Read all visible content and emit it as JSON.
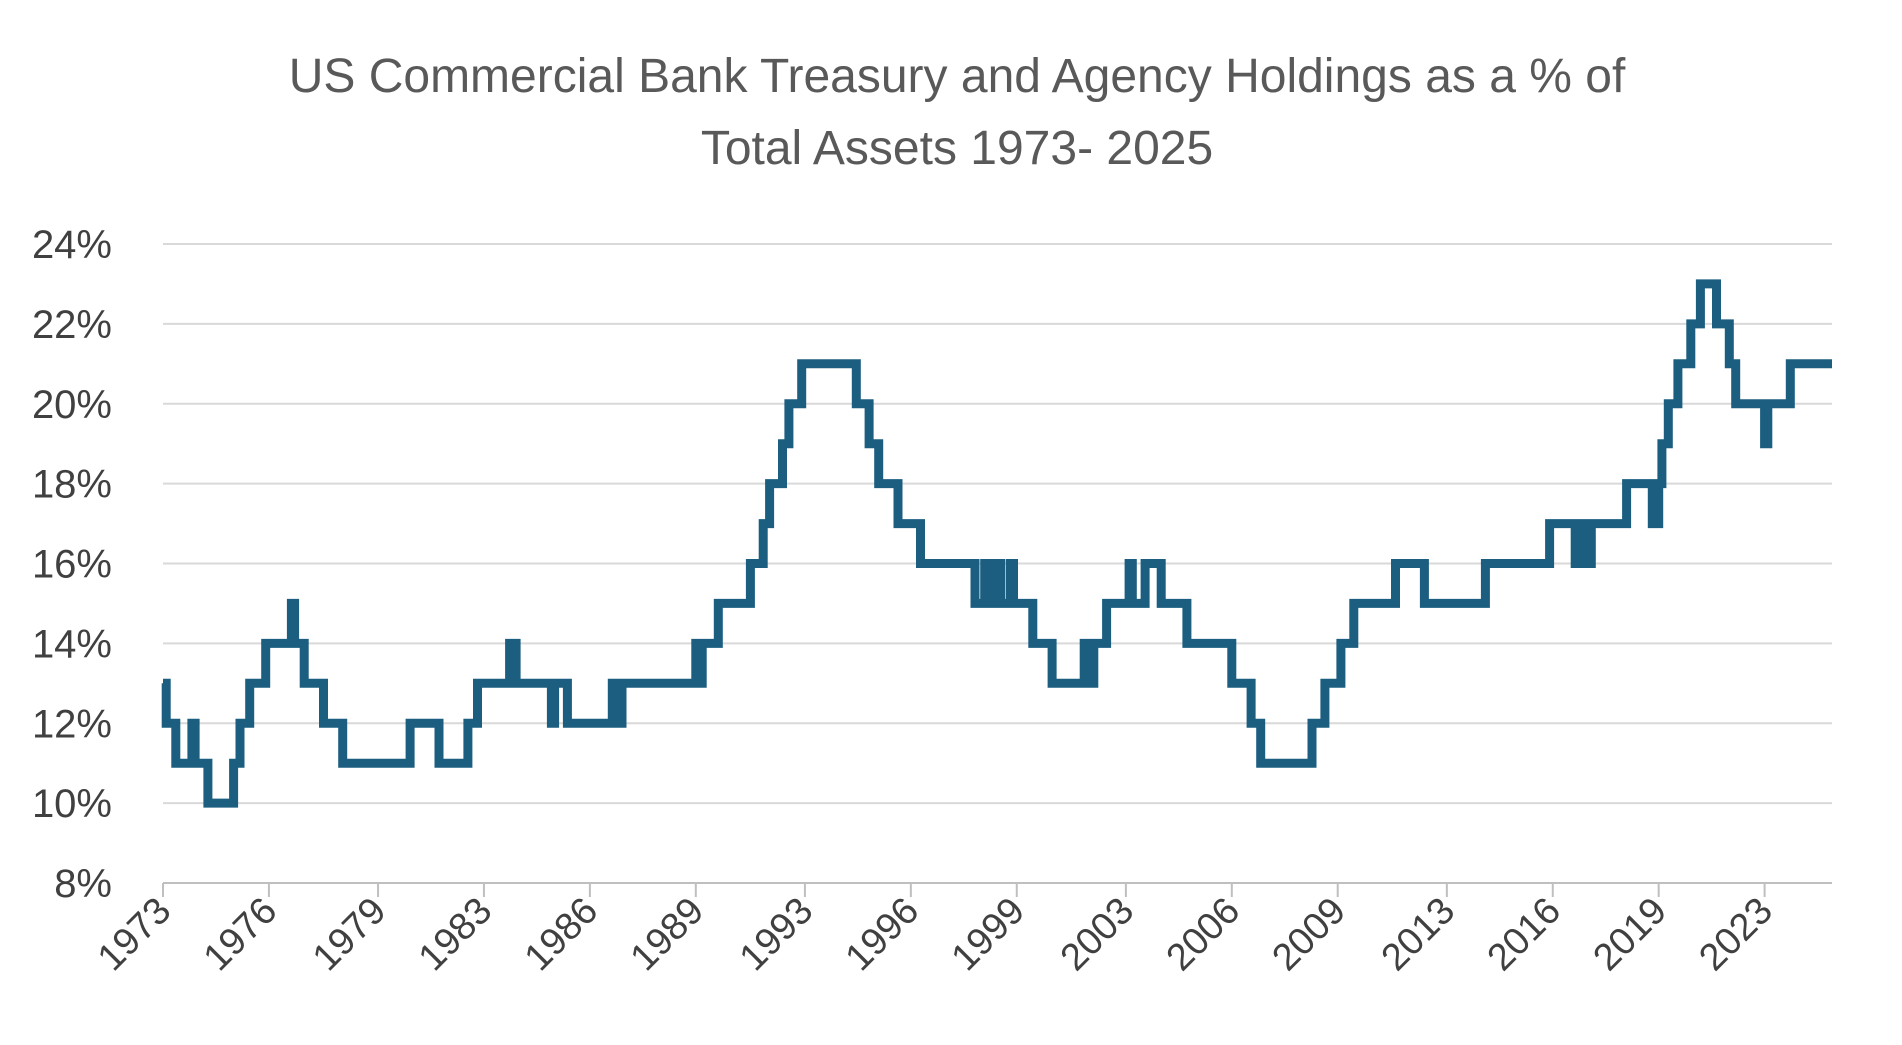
{
  "chart_data": {
    "type": "line",
    "title_lines": [
      "US Commercial Bank Treasury and Agency Holdings as a % of",
      "Total Assets 1973- 2025"
    ],
    "xlabel": "",
    "ylabel": "",
    "ylim": [
      8,
      24
    ],
    "xlim": [
      1973.0,
      2025.0
    ],
    "y_ticks": [
      8,
      10,
      12,
      14,
      16,
      18,
      20,
      22,
      24
    ],
    "y_tick_labels": [
      "8%",
      "10%",
      "12%",
      "14%",
      "16%",
      "18%",
      "20%",
      "22%",
      "24%"
    ],
    "x_ticks": [
      1973.0,
      1976.3,
      1979.7,
      1983.0,
      1986.3,
      1989.6,
      1993.0,
      1996.3,
      1999.6,
      2003.0,
      2006.3,
      2009.6,
      2013.0,
      2016.3,
      2019.6,
      2022.9
    ],
    "x_tick_labels": [
      "1973",
      "1976",
      "1979",
      "1983",
      "1986",
      "1989",
      "1993",
      "1996",
      "1999",
      "2003",
      "2006",
      "2009",
      "2013",
      "2016",
      "2019",
      "2023"
    ],
    "grid": true,
    "legend": "none",
    "series": [
      {
        "color": "#1b5e80",
        "step": true,
        "points": [
          [
            1973.0,
            13
          ],
          [
            1973.1,
            12
          ],
          [
            1973.4,
            11
          ],
          [
            1973.9,
            12
          ],
          [
            1974.0,
            11
          ],
          [
            1974.4,
            10
          ],
          [
            1975.2,
            11
          ],
          [
            1975.4,
            12
          ],
          [
            1975.7,
            13
          ],
          [
            1976.2,
            14
          ],
          [
            1977.0,
            15
          ],
          [
            1977.1,
            14
          ],
          [
            1977.4,
            13
          ],
          [
            1978.0,
            12
          ],
          [
            1978.6,
            11
          ],
          [
            1980.7,
            12
          ],
          [
            1981.6,
            11
          ],
          [
            1982.0,
            11
          ],
          [
            1982.5,
            12
          ],
          [
            1982.8,
            13
          ],
          [
            1983.8,
            14
          ],
          [
            1984.0,
            13
          ],
          [
            1985.1,
            12
          ],
          [
            1985.2,
            13
          ],
          [
            1985.6,
            12
          ],
          [
            1987.0,
            13
          ],
          [
            1987.1,
            12
          ],
          [
            1987.3,
            13
          ],
          [
            1989.6,
            14
          ],
          [
            1989.7,
            13
          ],
          [
            1989.8,
            14
          ],
          [
            1990.3,
            15
          ],
          [
            1991.3,
            16
          ],
          [
            1991.7,
            17
          ],
          [
            1991.9,
            18
          ],
          [
            1992.3,
            19
          ],
          [
            1992.5,
            20
          ],
          [
            1992.9,
            21
          ],
          [
            1994.6,
            20
          ],
          [
            1995.0,
            19
          ],
          [
            1995.3,
            18
          ],
          [
            1995.9,
            17
          ],
          [
            1996.6,
            16
          ],
          [
            1998.3,
            15
          ],
          [
            1998.6,
            16
          ],
          [
            1998.7,
            15
          ],
          [
            1998.9,
            16
          ],
          [
            1999.1,
            15
          ],
          [
            1999.4,
            16
          ],
          [
            1999.5,
            15
          ],
          [
            2000.1,
            14
          ],
          [
            2000.7,
            13
          ],
          [
            2001.7,
            14
          ],
          [
            2001.9,
            13
          ],
          [
            2002.0,
            14
          ],
          [
            2002.4,
            15
          ],
          [
            2003.1,
            16
          ],
          [
            2003.2,
            15
          ],
          [
            2003.4,
            15
          ],
          [
            2003.6,
            16
          ],
          [
            2004.1,
            15
          ],
          [
            2004.9,
            14
          ],
          [
            2006.3,
            13
          ],
          [
            2006.9,
            12
          ],
          [
            2007.2,
            11
          ],
          [
            2008.8,
            12
          ],
          [
            2009.2,
            13
          ],
          [
            2009.7,
            14
          ],
          [
            2010.1,
            15
          ],
          [
            2011.4,
            16
          ],
          [
            2012.3,
            15
          ],
          [
            2014.2,
            16
          ],
          [
            2016.2,
            17
          ],
          [
            2017.0,
            16
          ],
          [
            2017.1,
            17
          ],
          [
            2017.3,
            16
          ],
          [
            2017.5,
            17
          ],
          [
            2018.6,
            18
          ],
          [
            2019.4,
            17
          ],
          [
            2019.6,
            18
          ],
          [
            2019.7,
            19
          ],
          [
            2019.9,
            20
          ],
          [
            2020.2,
            21
          ],
          [
            2020.6,
            22
          ],
          [
            2020.9,
            23
          ],
          [
            2021.4,
            22
          ],
          [
            2021.8,
            21
          ],
          [
            2022.0,
            20
          ],
          [
            2022.9,
            19
          ],
          [
            2023.0,
            20
          ],
          [
            2023.7,
            21
          ],
          [
            2025.0,
            21
          ]
        ]
      }
    ]
  }
}
